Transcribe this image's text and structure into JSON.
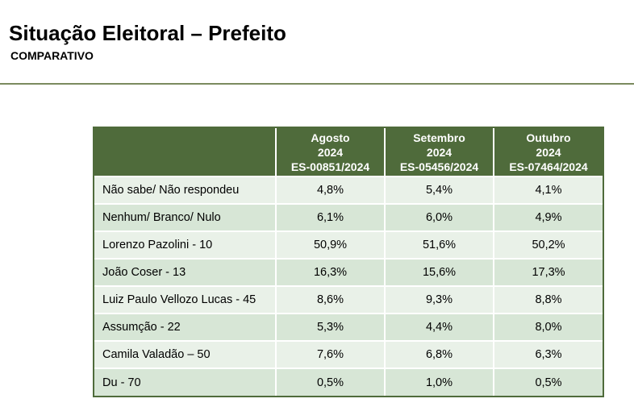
{
  "header": {
    "title": "Situação Eleitoral – Prefeito",
    "subtitle": "COMPARATIVO"
  },
  "colors": {
    "header_green": "#4f6b3b",
    "row_light": "#e9f1e8",
    "row_dark": "#d7e6d6",
    "divider": "#7b8a5e"
  },
  "table": {
    "columns": [
      {
        "month": "Agosto",
        "year": "2024",
        "code": "ES-00851/2024"
      },
      {
        "month": "Setembro",
        "year": "2024",
        "code": "ES-05456/2024"
      },
      {
        "month": "Outubro",
        "year": "2024",
        "code": "ES-07464/2024"
      }
    ],
    "rows": [
      {
        "label": "Não sabe/ Não respondeu",
        "values": [
          "4,8%",
          "5,4%",
          "4,1%"
        ]
      },
      {
        "label": "Nenhum/ Branco/ Nulo",
        "values": [
          "6,1%",
          "6,0%",
          "4,9%"
        ]
      },
      {
        "label": "Lorenzo Pazolini - 10",
        "values": [
          "50,9%",
          "51,6%",
          "50,2%"
        ]
      },
      {
        "label": "João Coser - 13",
        "values": [
          "16,3%",
          "15,6%",
          "17,3%"
        ]
      },
      {
        "label": "Luiz Paulo Vellozo Lucas - 45",
        "values": [
          "8,6%",
          "9,3%",
          "8,8%"
        ]
      },
      {
        "label": "Assumção - 22",
        "values": [
          "5,3%",
          "4,4%",
          "8,0%"
        ]
      },
      {
        "label": "Camila Valadão – 50",
        "values": [
          "7,6%",
          "6,8%",
          "6,3%"
        ]
      },
      {
        "label": "Du - 70",
        "values": [
          "0,5%",
          "1,0%",
          "0,5%"
        ]
      }
    ]
  }
}
